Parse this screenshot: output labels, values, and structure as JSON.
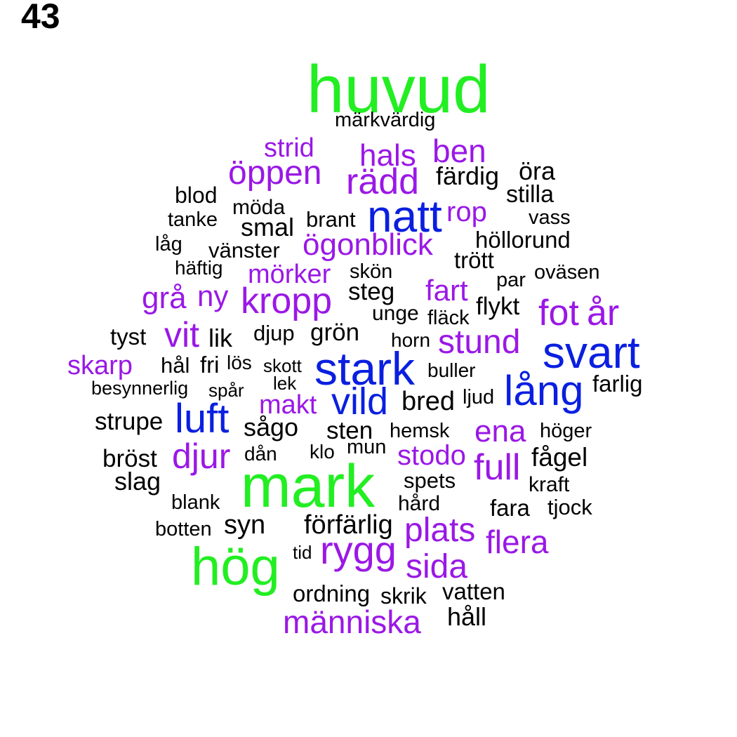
{
  "page_number": "43",
  "colors": {
    "tier1": "#22ee22",
    "tier2": "#0a1fe0",
    "tier3": "#9a18e6",
    "tier4": "#000000"
  },
  "words": [
    {
      "text": "huvud",
      "tier": "tier1"
    },
    {
      "text": "märkvärdig",
      "tier": "tier4"
    },
    {
      "text": "strid",
      "tier": "tier3"
    },
    {
      "text": "hals",
      "tier": "tier3"
    },
    {
      "text": "ben",
      "tier": "tier3"
    },
    {
      "text": "öppen",
      "tier": "tier3"
    },
    {
      "text": "rädd",
      "tier": "tier3"
    },
    {
      "text": "färdig",
      "tier": "tier4"
    },
    {
      "text": "öra",
      "tier": "tier4"
    },
    {
      "text": "stilla",
      "tier": "tier4"
    },
    {
      "text": "blod",
      "tier": "tier4"
    },
    {
      "text": "möda",
      "tier": "tier4"
    },
    {
      "text": "natt",
      "tier": "tier2"
    },
    {
      "text": "rop",
      "tier": "tier3"
    },
    {
      "text": "tanke",
      "tier": "tier4"
    },
    {
      "text": "brant",
      "tier": "tier4"
    },
    {
      "text": "vass",
      "tier": "tier4"
    },
    {
      "text": "smal",
      "tier": "tier4"
    },
    {
      "text": "låg",
      "tier": "tier4"
    },
    {
      "text": "ögonblick",
      "tier": "tier3"
    },
    {
      "text": "höllorund",
      "tier": "tier4"
    },
    {
      "text": "vänster",
      "tier": "tier4"
    },
    {
      "text": "trött",
      "tier": "tier4"
    },
    {
      "text": "häftig",
      "tier": "tier4"
    },
    {
      "text": "mörker",
      "tier": "tier3"
    },
    {
      "text": "skön",
      "tier": "tier4"
    },
    {
      "text": "oväsen",
      "tier": "tier4"
    },
    {
      "text": "par",
      "tier": "tier4"
    },
    {
      "text": "grå",
      "tier": "tier3"
    },
    {
      "text": "ny",
      "tier": "tier3"
    },
    {
      "text": "kropp",
      "tier": "tier3"
    },
    {
      "text": "steg",
      "tier": "tier4"
    },
    {
      "text": "fart",
      "tier": "tier3"
    },
    {
      "text": "fot",
      "tier": "tier3"
    },
    {
      "text": "år",
      "tier": "tier3"
    },
    {
      "text": "flykt",
      "tier": "tier4"
    },
    {
      "text": "unge",
      "tier": "tier4"
    },
    {
      "text": "fläck",
      "tier": "tier4"
    },
    {
      "text": "vit",
      "tier": "tier3"
    },
    {
      "text": "tyst",
      "tier": "tier4"
    },
    {
      "text": "lik",
      "tier": "tier4"
    },
    {
      "text": "djup",
      "tier": "tier4"
    },
    {
      "text": "grön",
      "tier": "tier4"
    },
    {
      "text": "horn",
      "tier": "tier4"
    },
    {
      "text": "stund",
      "tier": "tier3"
    },
    {
      "text": "svart",
      "tier": "tier2"
    },
    {
      "text": "skarp",
      "tier": "tier3"
    },
    {
      "text": "hål",
      "tier": "tier4"
    },
    {
      "text": "fri",
      "tier": "tier4"
    },
    {
      "text": "lös",
      "tier": "tier4"
    },
    {
      "text": "skott",
      "tier": "tier4"
    },
    {
      "text": "stark",
      "tier": "tier2"
    },
    {
      "text": "buller",
      "tier": "tier4"
    },
    {
      "text": "lång",
      "tier": "tier2"
    },
    {
      "text": "farlig",
      "tier": "tier4"
    },
    {
      "text": "besynnerlig",
      "tier": "tier4"
    },
    {
      "text": "spår",
      "tier": "tier4"
    },
    {
      "text": "lek",
      "tier": "tier4"
    },
    {
      "text": "vild",
      "tier": "tier2"
    },
    {
      "text": "bred",
      "tier": "tier4"
    },
    {
      "text": "ljud",
      "tier": "tier4"
    },
    {
      "text": "makt",
      "tier": "tier3"
    },
    {
      "text": "luft",
      "tier": "tier2"
    },
    {
      "text": "strupe",
      "tier": "tier4"
    },
    {
      "text": "sågo",
      "tier": "tier4"
    },
    {
      "text": "sten",
      "tier": "tier4"
    },
    {
      "text": "hemsk",
      "tier": "tier4"
    },
    {
      "text": "ena",
      "tier": "tier3"
    },
    {
      "text": "höger",
      "tier": "tier4"
    },
    {
      "text": "djur",
      "tier": "tier3"
    },
    {
      "text": "klo",
      "tier": "tier4"
    },
    {
      "text": "mun",
      "tier": "tier4"
    },
    {
      "text": "stodo",
      "tier": "tier3"
    },
    {
      "text": "bröst",
      "tier": "tier4"
    },
    {
      "text": "dån",
      "tier": "tier4"
    },
    {
      "text": "full",
      "tier": "tier3"
    },
    {
      "text": "fågel",
      "tier": "tier4"
    },
    {
      "text": "slag",
      "tier": "tier4"
    },
    {
      "text": "mark",
      "tier": "tier1"
    },
    {
      "text": "spets",
      "tier": "tier4"
    },
    {
      "text": "kraft",
      "tier": "tier4"
    },
    {
      "text": "blank",
      "tier": "tier4"
    },
    {
      "text": "hård",
      "tier": "tier4"
    },
    {
      "text": "fara",
      "tier": "tier4"
    },
    {
      "text": "tjock",
      "tier": "tier4"
    },
    {
      "text": "syn",
      "tier": "tier4"
    },
    {
      "text": "förfärlig",
      "tier": "tier4"
    },
    {
      "text": "botten",
      "tier": "tier4"
    },
    {
      "text": "plats",
      "tier": "tier3"
    },
    {
      "text": "flera",
      "tier": "tier3"
    },
    {
      "text": "hög",
      "tier": "tier1"
    },
    {
      "text": "tid",
      "tier": "tier4"
    },
    {
      "text": "rygg",
      "tier": "tier3"
    },
    {
      "text": "sida",
      "tier": "tier3"
    },
    {
      "text": "ordning",
      "tier": "tier4"
    },
    {
      "text": "skrik",
      "tier": "tier4"
    },
    {
      "text": "vatten",
      "tier": "tier4"
    },
    {
      "text": "människa",
      "tier": "tier3"
    },
    {
      "text": "håll",
      "tier": "tier4"
    }
  ]
}
